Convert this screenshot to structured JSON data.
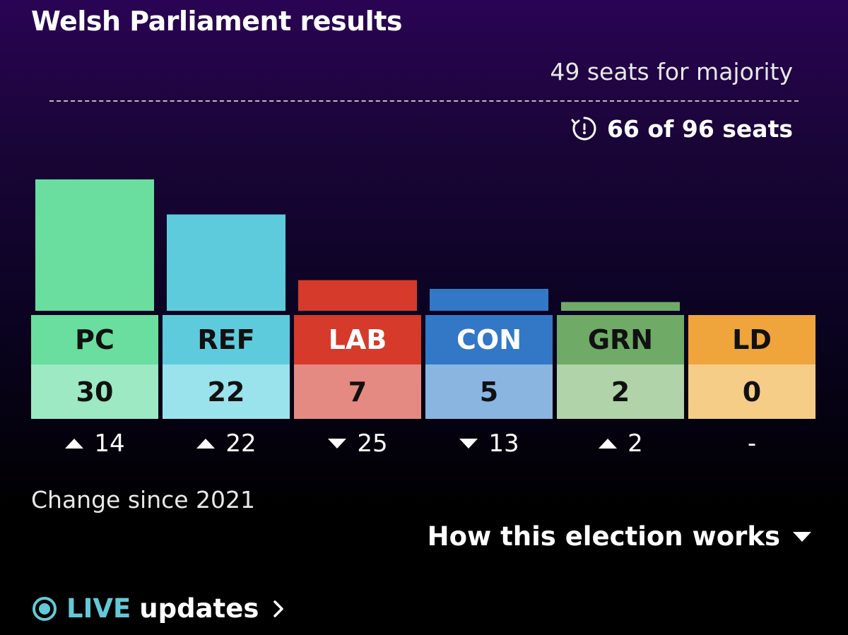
{
  "header": {
    "title": "Welsh Parliament results",
    "majority_text": "49 seats for majority",
    "progress_text": "66 of 96 seats"
  },
  "chart_data": {
    "type": "bar",
    "categories": [
      "PC",
      "REF",
      "LAB",
      "CON",
      "GRN",
      "LD"
    ],
    "values": [
      30,
      22,
      7,
      5,
      2,
      0
    ],
    "change": [
      14,
      22,
      -25,
      -13,
      2,
      null
    ],
    "change_labels": [
      "14",
      "22",
      "25",
      "13",
      "2",
      "-"
    ],
    "colors": [
      "#6ade9e",
      "#5ecbdc",
      "#d53a2b",
      "#3377c7",
      "#6fab67",
      "#f0a43c"
    ],
    "light_colors": [
      "#9ce9c3",
      "#9be3ec",
      "#e58a82",
      "#8ab5e1",
      "#b0d3a9",
      "#f5cd87"
    ],
    "abbr_text_colors": [
      "#111111",
      "#111111",
      "#ffffff",
      "#ffffff",
      "#111111",
      "#111111"
    ],
    "ylim": [
      0,
      30
    ]
  },
  "footer": {
    "change_caption": "Change since 2021",
    "how_works": "How this election works",
    "live_label": "LIVE",
    "updates_label": "updates"
  }
}
